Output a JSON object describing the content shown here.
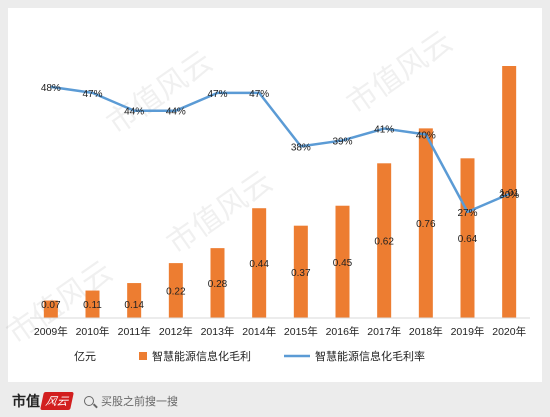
{
  "chart_data": {
    "type": "bar+line",
    "categories": [
      "2009年",
      "2010年",
      "2011年",
      "2012年",
      "2013年",
      "2014年",
      "2015年",
      "2016年",
      "2017年",
      "2018年",
      "2019年",
      "2020年"
    ],
    "series": [
      {
        "name": "智慧能源信息化毛利",
        "type": "bar",
        "values": [
          0.07,
          0.11,
          0.14,
          0.22,
          0.28,
          0.44,
          0.37,
          0.45,
          0.62,
          0.76,
          0.64,
          1.01
        ],
        "labels": [
          "0.07",
          "0.11",
          "0.14",
          "0.22",
          "0.28",
          "0.44",
          "0.37",
          "0.45",
          "0.62",
          "0.76",
          "0.64",
          "1.01"
        ],
        "color": "#ed7d31"
      },
      {
        "name": "智慧能源信息化毛利率",
        "type": "line",
        "values": [
          48,
          47,
          44,
          44,
          47,
          47,
          38,
          39,
          41,
          40,
          27,
          30
        ],
        "labels": [
          "48%",
          "47%",
          "44%",
          "44%",
          "47%",
          "47%",
          "38%",
          "39%",
          "41%",
          "40%",
          "27%",
          "30%"
        ],
        "color": "#5b9bd5"
      }
    ],
    "unit_label": "亿元",
    "bar_ylim": [
      0,
      1.1
    ],
    "line_ylim": [
      0,
      60
    ],
    "grid": false,
    "legend_position": "bottom"
  },
  "watermark": [
    "市值风云",
    "市值风云",
    "市值风云",
    "市值风云"
  ],
  "footer": {
    "brand": "市值",
    "brand_seal": "风云",
    "search_placeholder": "买股之前搜一搜"
  }
}
